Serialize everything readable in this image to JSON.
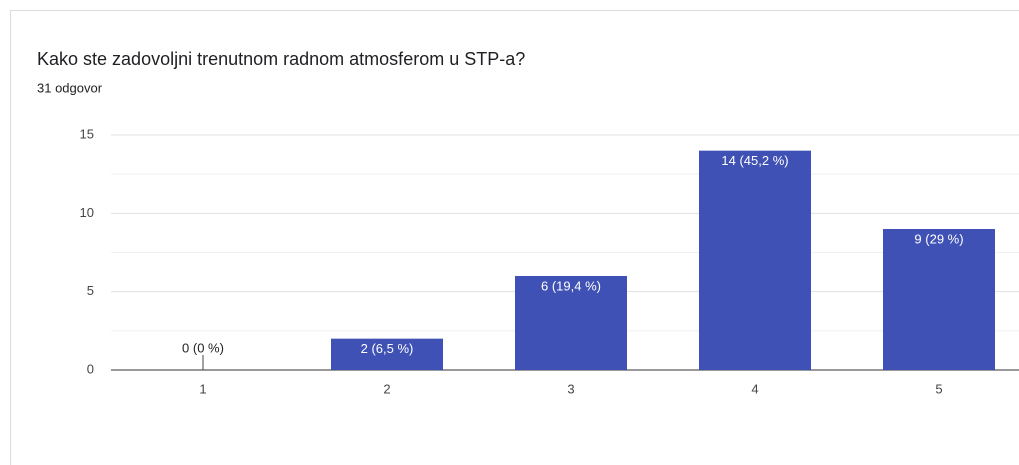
{
  "chart_data": {
    "type": "bar",
    "title": "Kako ste zadovoljni trenutnom radnom atmosferom u STP-a?",
    "subtitle": "31 odgovor",
    "categories": [
      "1",
      "2",
      "3",
      "4",
      "5"
    ],
    "values": [
      0,
      2,
      6,
      14,
      9
    ],
    "value_labels": [
      "0 (0 %)",
      "2 (6,5 %)",
      "6 (19,4 %)",
      "14 (45,2 %)",
      "9 (29 %)"
    ],
    "color": "#3f51b5",
    "ylim": [
      0,
      15
    ],
    "yticks": [
      0,
      5,
      10,
      15
    ],
    "minor_gridlines": [
      2.5,
      7.5,
      12.5
    ],
    "grid": true
  }
}
